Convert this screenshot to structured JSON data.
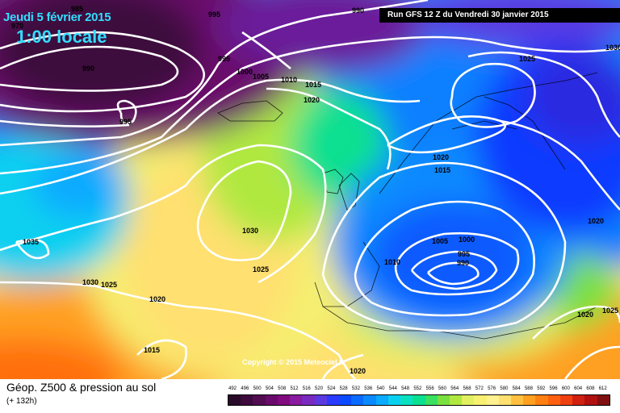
{
  "header": {
    "date": "Jeudi 5 février 2015",
    "time": "1:00 locale",
    "run": "Run GFS 12 Z du Vendredi 30 janvier 2015"
  },
  "copyright": "Copyright © 2015 Meteociel.fr",
  "footer": {
    "title": "Géop. Z500 & pression au sol",
    "subtitle": "(+ 132h)"
  },
  "legend": {
    "ticks": [
      "492",
      "496",
      "500",
      "504",
      "508",
      "512",
      "516",
      "520",
      "524",
      "528",
      "532",
      "536",
      "540",
      "544",
      "548",
      "552",
      "556",
      "560",
      "564",
      "568",
      "572",
      "576",
      "580",
      "584",
      "588",
      "592",
      "596",
      "600",
      "604",
      "608",
      "612"
    ],
    "colors": [
      "#2a0a2a",
      "#3d0a3d",
      "#520c52",
      "#6a0a6a",
      "#800a80",
      "#8a1aa0",
      "#7a2ac0",
      "#5a3ae0",
      "#2a3aff",
      "#0a4aff",
      "#0a6aff",
      "#0a8aff",
      "#0aaaff",
      "#0ad0f0",
      "#0ae0c0",
      "#0ae090",
      "#3ae060",
      "#7ae040",
      "#b0e840",
      "#e0f060",
      "#f8f070",
      "#fff090",
      "#ffe070",
      "#ffc040",
      "#ffa020",
      "#ff8010",
      "#ff6010",
      "#f04010",
      "#d02010",
      "#b01010",
      "#801010"
    ]
  },
  "map": {
    "isobar_labels": [
      "985",
      "995",
      "990",
      "970",
      "990",
      "995",
      "995",
      "1000",
      "1005",
      "1010",
      "1015",
      "1020",
      "1025",
      "1030",
      "1020",
      "1015",
      "1020",
      "1005",
      "1000",
      "995",
      "990",
      "1010",
      "1030",
      "1025",
      "1035",
      "1030",
      "1025",
      "1020",
      "1015",
      "1020",
      "1025",
      "1020",
      "1010",
      "1030"
    ]
  }
}
